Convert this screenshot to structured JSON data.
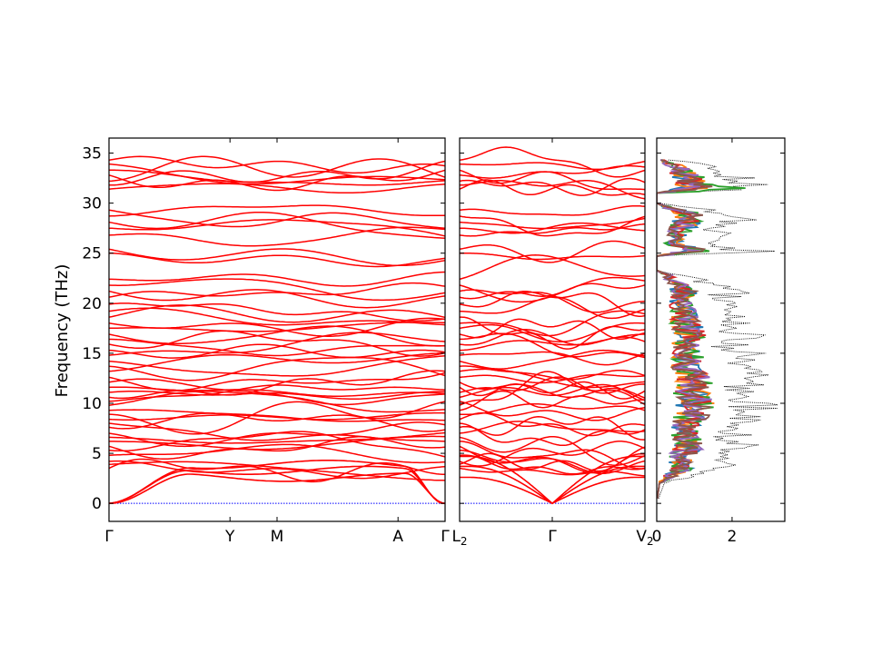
{
  "chart_data": {
    "type": "line",
    "ylabel": "Frequency (THz)",
    "ylim": [
      -1.8,
      36.5
    ],
    "yticks": [
      0,
      5,
      10,
      15,
      20,
      25,
      30,
      35
    ],
    "colors": {
      "bands": "#ff0000",
      "zero_line": "#0000ff",
      "dos_total": "#000000",
      "pdos": [
        "#1f77b4",
        "#ff7f0e",
        "#2ca02c",
        "#d62728",
        "#9467bd",
        "#8c564b"
      ]
    },
    "panels": [
      {
        "name": "bands-main",
        "xticks": [
          {
            "label": "Γ",
            "pos": 0.0
          },
          {
            "label": "Y",
            "pos": 0.36
          },
          {
            "label": "M",
            "pos": 0.5
          },
          {
            "label": "A",
            "pos": 0.86
          },
          {
            "label": "Γ",
            "pos": 1.0
          }
        ],
        "xlabel_edge": ""
      },
      {
        "name": "bands-second",
        "xticks": [
          {
            "label": "L",
            "sub": "2",
            "pos": 0.0
          },
          {
            "label": "Γ",
            "pos": 0.5
          },
          {
            "label": "V",
            "sub": "2",
            "pos": 1.0
          }
        ]
      }
    ],
    "band_frequencies_at_gamma": [
      3.5,
      3.9,
      4.2,
      4.8,
      5.3,
      5.7,
      6.2,
      6.6,
      7.0,
      7.6,
      8.0,
      8.4,
      8.9,
      9.3,
      9.8,
      10.2,
      10.6,
      11.1,
      11.6,
      12.1,
      12.6,
      13.2,
      13.7,
      14.2,
      14.8,
      15.3,
      15.9,
      16.4,
      16.9,
      17.5,
      18.0,
      18.6,
      19.2,
      19.9,
      20.6,
      21.2,
      21.8,
      22.4,
      25.0,
      25.4,
      26.8,
      27.5,
      28.1,
      28.7,
      29.3,
      31.4,
      31.8,
      32.2,
      32.8,
      33.3,
      33.9,
      34.3
    ],
    "dos": {
      "xticks": [
        0,
        2
      ],
      "xlim": [
        0,
        3.4
      ],
      "total_peaks": [
        {
          "f": 0.5,
          "v": 0.05
        },
        {
          "f": 2.0,
          "v": 0.2
        },
        {
          "f": 3.5,
          "v": 2.3
        },
        {
          "f": 4.5,
          "v": 2.1
        },
        {
          "f": 5.2,
          "v": 2.6
        },
        {
          "f": 6.0,
          "v": 2.9
        },
        {
          "f": 7.0,
          "v": 2.5
        },
        {
          "f": 8.0,
          "v": 2.8
        },
        {
          "f": 9.0,
          "v": 3.2
        },
        {
          "f": 10.0,
          "v": 3.4
        },
        {
          "f": 11.0,
          "v": 3.1
        },
        {
          "f": 12.0,
          "v": 3.3
        },
        {
          "f": 13.0,
          "v": 3.0
        },
        {
          "f": 14.0,
          "v": 2.6
        },
        {
          "f": 15.0,
          "v": 2.9
        },
        {
          "f": 16.0,
          "v": 2.4
        },
        {
          "f": 17.0,
          "v": 3.0
        },
        {
          "f": 18.0,
          "v": 2.6
        },
        {
          "f": 19.0,
          "v": 2.4
        },
        {
          "f": 20.0,
          "v": 2.1
        },
        {
          "f": 21.0,
          "v": 2.5
        },
        {
          "f": 22.0,
          "v": 1.8
        },
        {
          "f": 22.8,
          "v": 0.9
        },
        {
          "f": 23.3,
          "v": 0.0
        },
        {
          "f": 24.7,
          "v": 0.0
        },
        {
          "f": 25.2,
          "v": 3.2
        },
        {
          "f": 26.0,
          "v": 1.5
        },
        {
          "f": 27.0,
          "v": 2.0
        },
        {
          "f": 28.0,
          "v": 2.6
        },
        {
          "f": 28.8,
          "v": 3.1
        },
        {
          "f": 29.5,
          "v": 1.2
        },
        {
          "f": 30.0,
          "v": 0.0
        },
        {
          "f": 31.0,
          "v": 0.0
        },
        {
          "f": 31.5,
          "v": 3.4
        },
        {
          "f": 32.2,
          "v": 3.3
        },
        {
          "f": 33.0,
          "v": 2.4
        },
        {
          "f": 33.8,
          "v": 1.5
        },
        {
          "f": 34.5,
          "v": 0.1
        }
      ]
    }
  }
}
